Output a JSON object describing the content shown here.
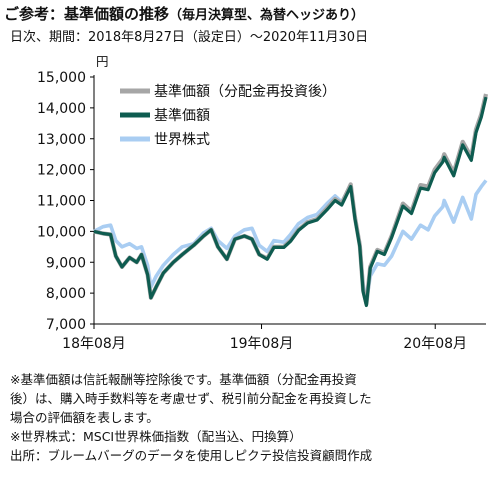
{
  "header": {
    "title_main": "ご参考：基準価額の推移",
    "title_sub": "（毎月決算型、為替ヘッジあり）",
    "period": "日次、期間：2018年8月27日（設定日）～2020年11月30日",
    "unit": "円"
  },
  "notes": [
    "※基準価額は信託報酬等控除後です。基準価額（分配金再投資",
    "後）は、購入時手数料等を考慮せず、税引前分配金を再投資した",
    "場合の評価額を表します。",
    "※世界株式：MSCI世界株価指数（配当込、円換算）",
    "出所：ブルームバーグのデータを使用しピクテ投信投資顧問作成"
  ],
  "colors": {
    "reinvested": "#a6a6a6",
    "nav": "#0e5c50",
    "world": "#a9cdf2",
    "axis": "#000000",
    "grid": "#d9d9d9"
  },
  "chart_data": {
    "type": "line",
    "x_unit": "date",
    "x_tick_labels": [
      "18年08月",
      "19年08月",
      "20年08月"
    ],
    "x_range": [
      "2018-08-27",
      "2020-11-30"
    ],
    "ylim": [
      7000,
      15000
    ],
    "y_ticks": [
      7000,
      8000,
      9000,
      10000,
      11000,
      12000,
      13000,
      14000,
      15000
    ],
    "y_tick_labels": [
      "7,000",
      "8,000",
      "9,000",
      "10,000",
      "11,000",
      "12,000",
      "13,000",
      "14,000",
      "15,000"
    ],
    "ylabel": "円",
    "grid": false,
    "legend_position": "top-left",
    "series": [
      {
        "name": "基準価額（分配金再投資後）",
        "points": [
          [
            "2018-08-27",
            10000
          ],
          [
            "2018-09-15",
            9930
          ],
          [
            "2018-10-01",
            9900
          ],
          [
            "2018-10-12",
            9200
          ],
          [
            "2018-10-25",
            8850
          ],
          [
            "2018-11-10",
            9150
          ],
          [
            "2018-11-25",
            9000
          ],
          [
            "2018-12-05",
            9250
          ],
          [
            "2018-12-18",
            8600
          ],
          [
            "2018-12-25",
            7850
          ],
          [
            "2019-01-05",
            8200
          ],
          [
            "2019-01-20",
            8650
          ],
          [
            "2019-02-10",
            9000
          ],
          [
            "2019-03-01",
            9250
          ],
          [
            "2019-03-25",
            9550
          ],
          [
            "2019-04-15",
            9850
          ],
          [
            "2019-05-01",
            10050
          ],
          [
            "2019-05-15",
            9500
          ],
          [
            "2019-06-03",
            9100
          ],
          [
            "2019-06-20",
            9750
          ],
          [
            "2019-07-10",
            9850
          ],
          [
            "2019-07-26",
            9750
          ],
          [
            "2019-08-10",
            9250
          ],
          [
            "2019-08-27",
            9120
          ],
          [
            "2019-09-10",
            9500
          ],
          [
            "2019-10-01",
            9500
          ],
          [
            "2019-10-15",
            9700
          ],
          [
            "2019-11-01",
            10050
          ],
          [
            "2019-11-20",
            10300
          ],
          [
            "2019-12-10",
            10400
          ],
          [
            "2019-12-31",
            10750
          ],
          [
            "2020-01-17",
            11050
          ],
          [
            "2020-01-31",
            10900
          ],
          [
            "2020-02-19",
            11520
          ],
          [
            "2020-02-28",
            10450
          ],
          [
            "2020-03-09",
            9550
          ],
          [
            "2020-03-16",
            8100
          ],
          [
            "2020-03-23",
            7650
          ],
          [
            "2020-03-31",
            8850
          ],
          [
            "2020-04-15",
            9400
          ],
          [
            "2020-04-30",
            9300
          ],
          [
            "2020-05-15",
            9850
          ],
          [
            "2020-06-08",
            10900
          ],
          [
            "2020-06-26",
            10650
          ],
          [
            "2020-07-15",
            11500
          ],
          [
            "2020-07-31",
            11450
          ],
          [
            "2020-08-14",
            12000
          ],
          [
            "2020-08-31",
            12350
          ],
          [
            "2020-09-03",
            12500
          ],
          [
            "2020-09-23",
            11900
          ],
          [
            "2020-10-12",
            12900
          ],
          [
            "2020-10-30",
            12400
          ],
          [
            "2020-11-09",
            13300
          ],
          [
            "2020-11-20",
            13800
          ],
          [
            "2020-11-30",
            14450
          ]
        ]
      },
      {
        "name": "基準価額",
        "points": [
          [
            "2018-08-27",
            10000
          ],
          [
            "2018-09-15",
            9930
          ],
          [
            "2018-10-01",
            9900
          ],
          [
            "2018-10-12",
            9200
          ],
          [
            "2018-10-25",
            8850
          ],
          [
            "2018-11-10",
            9150
          ],
          [
            "2018-11-25",
            9000
          ],
          [
            "2018-12-05",
            9250
          ],
          [
            "2018-12-18",
            8600
          ],
          [
            "2018-12-25",
            7850
          ],
          [
            "2019-01-05",
            8200
          ],
          [
            "2019-01-20",
            8650
          ],
          [
            "2019-02-10",
            9000
          ],
          [
            "2019-03-01",
            9250
          ],
          [
            "2019-03-25",
            9550
          ],
          [
            "2019-04-15",
            9850
          ],
          [
            "2019-05-01",
            10050
          ],
          [
            "2019-05-15",
            9500
          ],
          [
            "2019-06-03",
            9100
          ],
          [
            "2019-06-20",
            9750
          ],
          [
            "2019-07-10",
            9850
          ],
          [
            "2019-07-26",
            9750
          ],
          [
            "2019-08-10",
            9250
          ],
          [
            "2019-08-27",
            9100
          ],
          [
            "2019-09-10",
            9480
          ],
          [
            "2019-10-01",
            9480
          ],
          [
            "2019-10-15",
            9680
          ],
          [
            "2019-11-01",
            10030
          ],
          [
            "2019-11-20",
            10270
          ],
          [
            "2019-12-10",
            10370
          ],
          [
            "2019-12-31",
            10700
          ],
          [
            "2020-01-17",
            11000
          ],
          [
            "2020-01-31",
            10850
          ],
          [
            "2020-02-19",
            11450
          ],
          [
            "2020-02-28",
            10400
          ],
          [
            "2020-03-09",
            9500
          ],
          [
            "2020-03-16",
            8050
          ],
          [
            "2020-03-23",
            7600
          ],
          [
            "2020-03-31",
            8800
          ],
          [
            "2020-04-15",
            9350
          ],
          [
            "2020-04-30",
            9250
          ],
          [
            "2020-05-15",
            9800
          ],
          [
            "2020-06-08",
            10820
          ],
          [
            "2020-06-26",
            10580
          ],
          [
            "2020-07-15",
            11400
          ],
          [
            "2020-07-31",
            11350
          ],
          [
            "2020-08-14",
            11900
          ],
          [
            "2020-08-31",
            12250
          ],
          [
            "2020-09-03",
            12400
          ],
          [
            "2020-09-23",
            11800
          ],
          [
            "2020-10-12",
            12800
          ],
          [
            "2020-10-30",
            12300
          ],
          [
            "2020-11-09",
            13200
          ],
          [
            "2020-11-20",
            13700
          ],
          [
            "2020-11-30",
            14350
          ]
        ]
      },
      {
        "name": "世界株式",
        "points": [
          [
            "2018-08-27",
            10000
          ],
          [
            "2018-09-15",
            10150
          ],
          [
            "2018-10-01",
            10200
          ],
          [
            "2018-10-12",
            9700
          ],
          [
            "2018-10-25",
            9500
          ],
          [
            "2018-11-10",
            9600
          ],
          [
            "2018-11-25",
            9450
          ],
          [
            "2018-12-05",
            9500
          ],
          [
            "2018-12-18",
            8900
          ],
          [
            "2018-12-25",
            8200
          ],
          [
            "2019-01-05",
            8550
          ],
          [
            "2019-01-20",
            8900
          ],
          [
            "2019-02-10",
            9250
          ],
          [
            "2019-03-01",
            9500
          ],
          [
            "2019-03-25",
            9600
          ],
          [
            "2019-04-15",
            9950
          ],
          [
            "2019-05-01",
            10100
          ],
          [
            "2019-05-15",
            9700
          ],
          [
            "2019-06-03",
            9450
          ],
          [
            "2019-06-20",
            9850
          ],
          [
            "2019-07-10",
            10050
          ],
          [
            "2019-07-26",
            10100
          ],
          [
            "2019-08-10",
            9550
          ],
          [
            "2019-08-27",
            9350
          ],
          [
            "2019-09-10",
            9700
          ],
          [
            "2019-10-01",
            9650
          ],
          [
            "2019-10-15",
            9900
          ],
          [
            "2019-11-01",
            10250
          ],
          [
            "2019-11-20",
            10450
          ],
          [
            "2019-12-10",
            10550
          ],
          [
            "2019-12-31",
            10900
          ],
          [
            "2020-01-17",
            11150
          ],
          [
            "2020-01-31",
            10950
          ],
          [
            "2020-02-19",
            11500
          ],
          [
            "2020-02-28",
            10400
          ],
          [
            "2020-03-09",
            9600
          ],
          [
            "2020-03-16",
            8300
          ],
          [
            "2020-03-23",
            7700
          ],
          [
            "2020-03-31",
            8550
          ],
          [
            "2020-04-15",
            8950
          ],
          [
            "2020-04-30",
            8900
          ],
          [
            "2020-05-15",
            9200
          ],
          [
            "2020-06-08",
            10000
          ],
          [
            "2020-06-26",
            9750
          ],
          [
            "2020-07-15",
            10200
          ],
          [
            "2020-07-31",
            10050
          ],
          [
            "2020-08-14",
            10500
          ],
          [
            "2020-08-31",
            10800
          ],
          [
            "2020-09-03",
            11000
          ],
          [
            "2020-09-23",
            10300
          ],
          [
            "2020-10-12",
            11100
          ],
          [
            "2020-10-30",
            10400
          ],
          [
            "2020-11-09",
            11200
          ],
          [
            "2020-11-20",
            11450
          ],
          [
            "2020-11-30",
            11650
          ]
        ]
      }
    ]
  }
}
